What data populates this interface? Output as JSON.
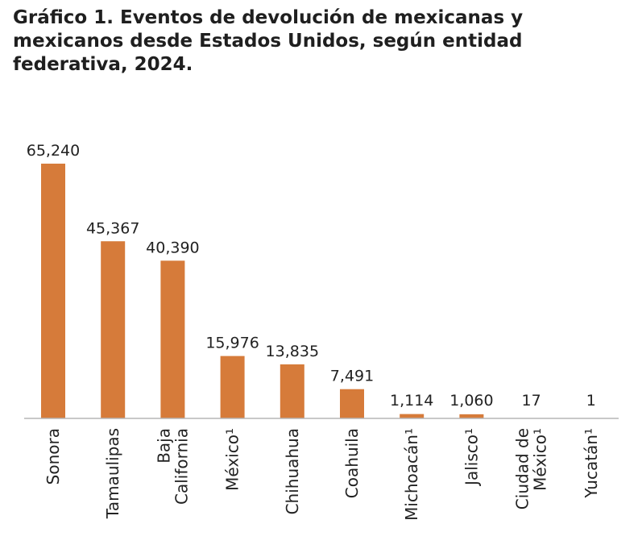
{
  "chart_data": {
    "type": "bar",
    "title": "Gráfico 1. Eventos de devolución de mexicanas y mexicanos desde Estados Unidos, según entidad federativa, 2024.",
    "categories": [
      [
        "Sonora"
      ],
      [
        "Tamaulipas"
      ],
      [
        "Baja",
        "California"
      ],
      [
        "México¹"
      ],
      [
        "Chihuahua"
      ],
      [
        "Coahuila"
      ],
      [
        "Michoacán¹"
      ],
      [
        "Jalisco¹"
      ],
      [
        "Ciudad de",
        "México¹"
      ],
      [
        "Yucatán¹"
      ]
    ],
    "values": [
      65240,
      45367,
      40390,
      15976,
      13835,
      7491,
      1114,
      1060,
      17,
      1
    ],
    "value_labels": [
      "65,240",
      "45,367",
      "40,390",
      "15,976",
      "13,835",
      "7,491",
      "1,114",
      "1,060",
      "17",
      "1"
    ],
    "ylim": [
      0,
      65240
    ],
    "grid": false,
    "colors": {
      "bar": "#D67B3A",
      "axis": "#b5b5b5"
    }
  }
}
